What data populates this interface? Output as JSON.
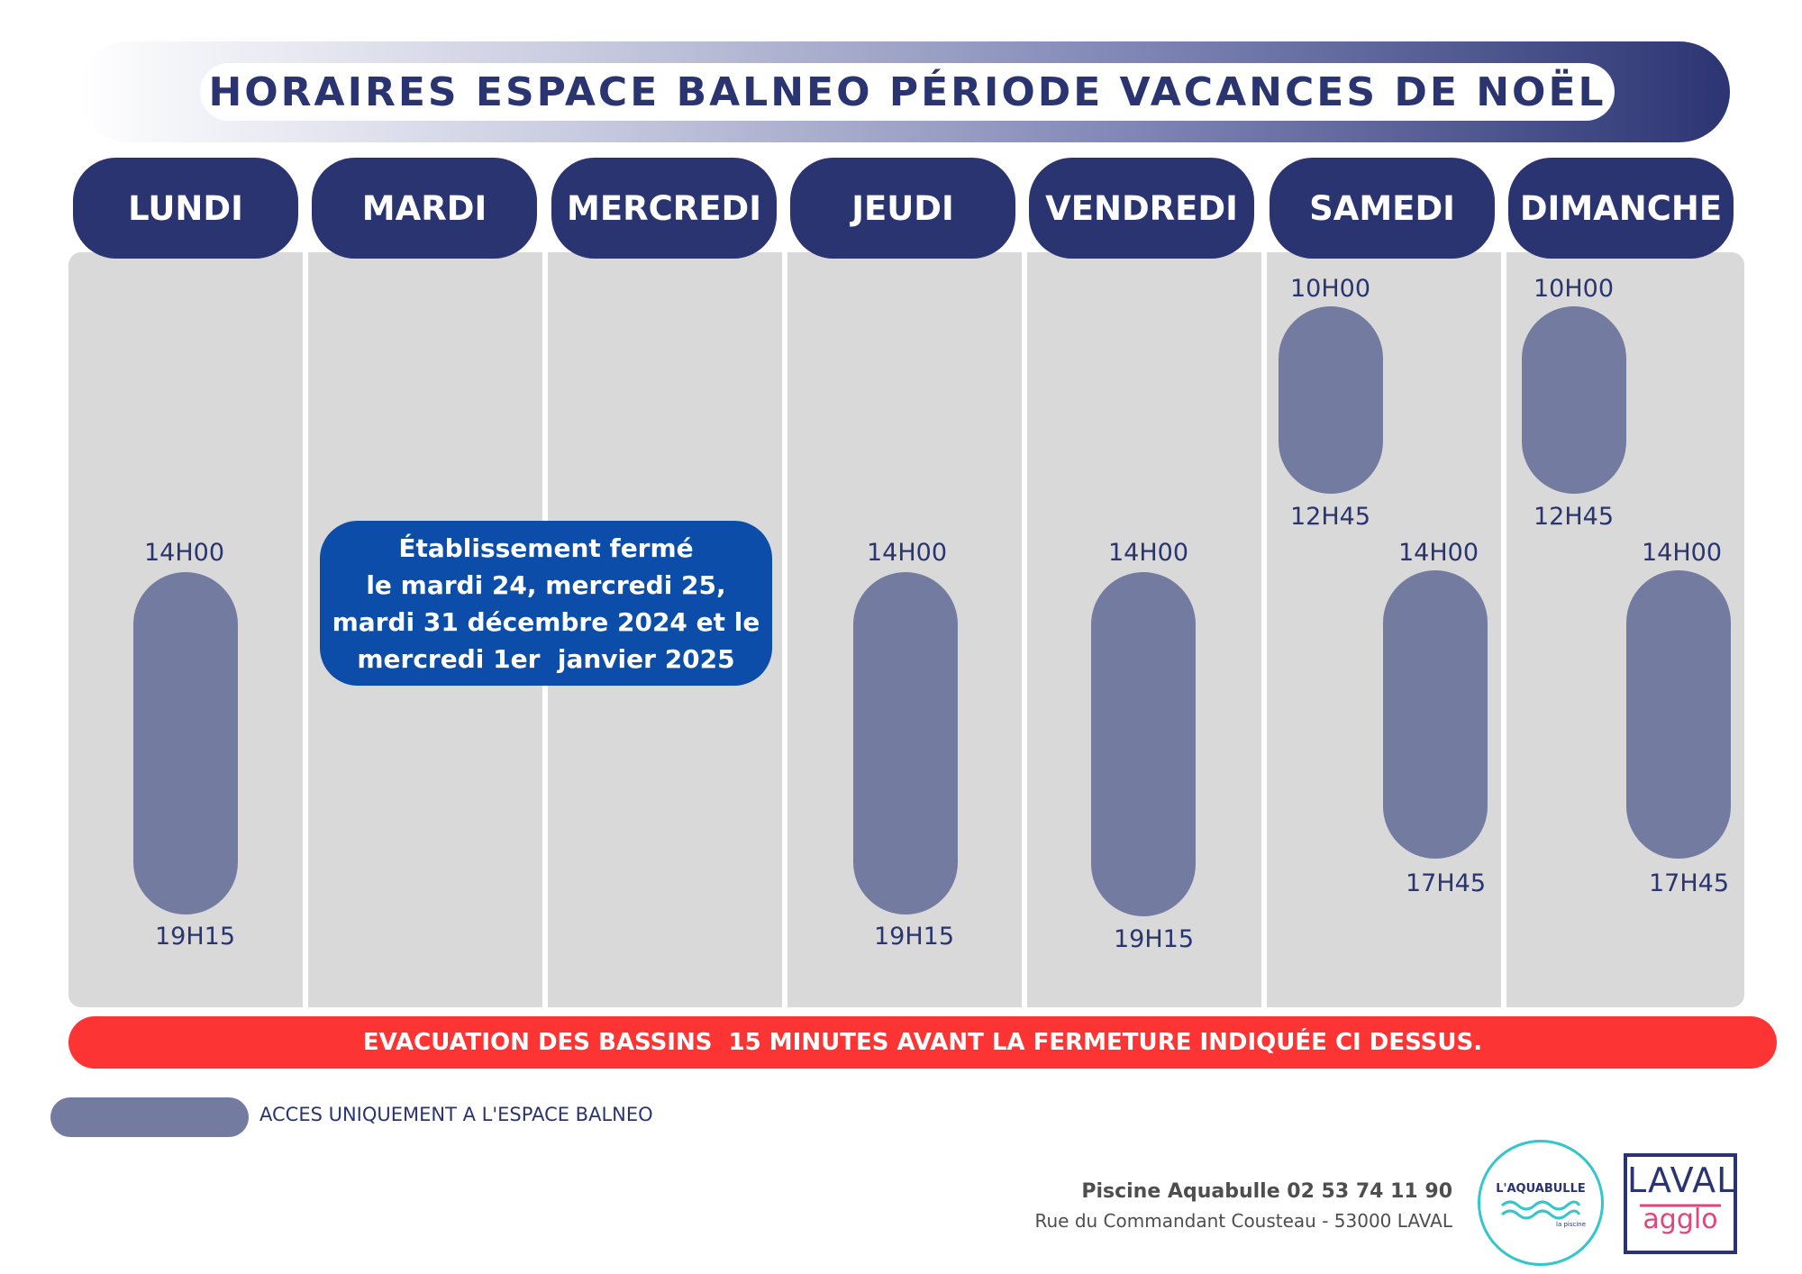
{
  "title": "HORAIRES ESPACE BALNEO PÉRIODE VACANCES DE NOËL",
  "days": [
    "LUNDI",
    "MARDI",
    "MERCREDI",
    "JEUDI",
    "VENDREDI",
    "SAMEDI",
    "DIMANCHE"
  ],
  "schedule": {
    "lundi": {
      "open": "14H00",
      "close": "19H15"
    },
    "jeudi": {
      "open": "14H00",
      "close": "19H15"
    },
    "vendredi": {
      "open": "14H00",
      "close": "19H15"
    },
    "samedi": {
      "morning_open": "10H00",
      "morning_close": "12H45",
      "afternoon_open": "14H00",
      "afternoon_close": "17H45"
    },
    "dimanche": {
      "morning_open": "10H00",
      "morning_close": "12H45",
      "afternoon_open": "14H00",
      "afternoon_close": "17H45"
    }
  },
  "closed_notice": {
    "line1": "Établissement fermé",
    "line2": "le mardi 24, mercredi 25,",
    "line3": "mardi 31 décembre 2024 et le",
    "line4": "mercredi 1er  janvier 2025"
  },
  "evacuation_notice": "EVACUATION DES BASSINS  15 MINUTES AVANT LA FERMETURE INDIQUÉE CI DESSUS.",
  "legend": {
    "label": "ACCES UNIQUEMENT A L'ESPACE BALNEO",
    "color": "#737ba0"
  },
  "footer": {
    "name": "Piscine Aquabulle 02 53 74 11 90",
    "address": "Rue du Commandant Cousteau - 53000 LAVAL"
  },
  "logos": {
    "aquabulle_title": "L'AQUABULLE",
    "aquabulle_sub": "la piscine",
    "laval_top": "LAVAL",
    "laval_bottom": "agglo"
  },
  "colors": {
    "navy": "#2a3470",
    "slot": "#737ba0",
    "column_bg": "#d9d9d9",
    "closed_box": "#0b4da8",
    "evacuation": "#fd3434",
    "aquabulle_teal": "#33c6cc",
    "laval_pink": "#e0467a"
  }
}
